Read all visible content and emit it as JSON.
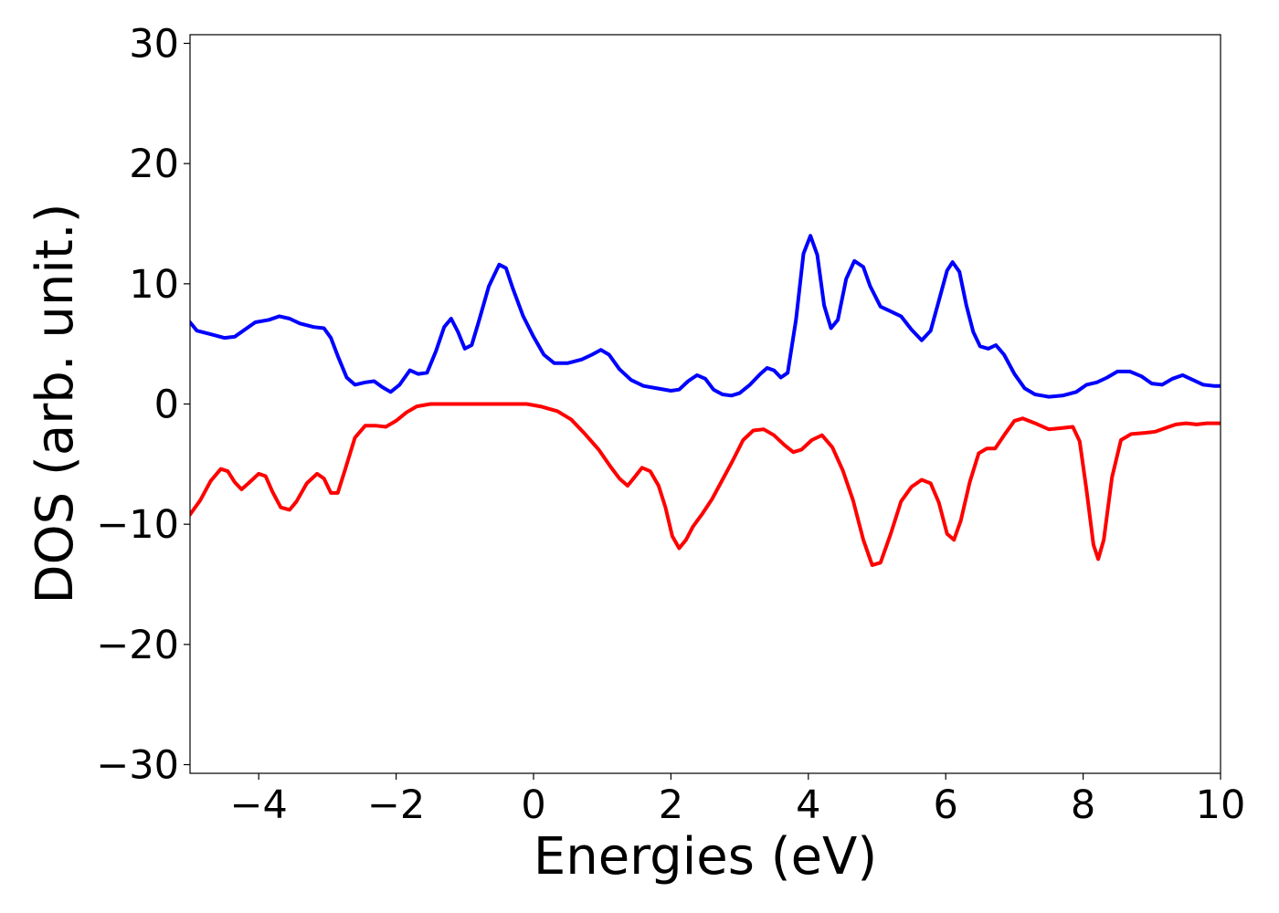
{
  "chart_data": {
    "type": "line",
    "title": "",
    "xlabel": "Energies (eV)",
    "ylabel": "DOS (arb. unit.)",
    "xlim": [
      -5,
      10
    ],
    "ylim": [
      -30,
      30
    ],
    "grid": false,
    "x_ticks": [
      -4,
      -2,
      0,
      2,
      4,
      6,
      8,
      10
    ],
    "y_ticks": [
      -30,
      -20,
      -10,
      0,
      10,
      20,
      30
    ],
    "series": [
      {
        "color": "#0000ff",
        "points": [
          [
            -5.0,
            6.8
          ],
          [
            -4.9,
            6.1
          ],
          [
            -4.7,
            5.8
          ],
          [
            -4.5,
            5.5
          ],
          [
            -4.35,
            5.6
          ],
          [
            -4.2,
            6.2
          ],
          [
            -4.05,
            6.8
          ],
          [
            -3.85,
            7.0
          ],
          [
            -3.7,
            7.3
          ],
          [
            -3.55,
            7.1
          ],
          [
            -3.4,
            6.7
          ],
          [
            -3.2,
            6.4
          ],
          [
            -3.05,
            6.3
          ],
          [
            -2.95,
            5.5
          ],
          [
            -2.85,
            4.0
          ],
          [
            -2.72,
            2.2
          ],
          [
            -2.6,
            1.6
          ],
          [
            -2.45,
            1.8
          ],
          [
            -2.32,
            1.9
          ],
          [
            -2.2,
            1.4
          ],
          [
            -2.08,
            1.0
          ],
          [
            -1.95,
            1.6
          ],
          [
            -1.8,
            2.8
          ],
          [
            -1.68,
            2.5
          ],
          [
            -1.55,
            2.6
          ],
          [
            -1.42,
            4.4
          ],
          [
            -1.3,
            6.4
          ],
          [
            -1.2,
            7.1
          ],
          [
            -1.1,
            6.0
          ],
          [
            -1.0,
            4.6
          ],
          [
            -0.9,
            4.9
          ],
          [
            -0.8,
            6.8
          ],
          [
            -0.65,
            9.8
          ],
          [
            -0.5,
            11.6
          ],
          [
            -0.4,
            11.3
          ],
          [
            -0.3,
            9.6
          ],
          [
            -0.15,
            7.3
          ],
          [
            0.0,
            5.6
          ],
          [
            0.15,
            4.1
          ],
          [
            0.3,
            3.4
          ],
          [
            0.5,
            3.4
          ],
          [
            0.7,
            3.7
          ],
          [
            0.85,
            4.1
          ],
          [
            0.98,
            4.5
          ],
          [
            1.1,
            4.1
          ],
          [
            1.25,
            2.9
          ],
          [
            1.42,
            2.0
          ],
          [
            1.6,
            1.5
          ],
          [
            1.8,
            1.3
          ],
          [
            2.0,
            1.1
          ],
          [
            2.12,
            1.2
          ],
          [
            2.25,
            1.9
          ],
          [
            2.38,
            2.4
          ],
          [
            2.5,
            2.1
          ],
          [
            2.62,
            1.2
          ],
          [
            2.75,
            0.8
          ],
          [
            2.88,
            0.7
          ],
          [
            3.0,
            0.9
          ],
          [
            3.15,
            1.6
          ],
          [
            3.3,
            2.5
          ],
          [
            3.4,
            3.0
          ],
          [
            3.5,
            2.8
          ],
          [
            3.6,
            2.2
          ],
          [
            3.7,
            2.6
          ],
          [
            3.82,
            7.0
          ],
          [
            3.93,
            12.5
          ],
          [
            4.03,
            14.0
          ],
          [
            4.13,
            12.4
          ],
          [
            4.23,
            8.2
          ],
          [
            4.33,
            6.3
          ],
          [
            4.43,
            7.0
          ],
          [
            4.55,
            10.4
          ],
          [
            4.67,
            11.9
          ],
          [
            4.8,
            11.4
          ],
          [
            4.9,
            9.8
          ],
          [
            5.05,
            8.1
          ],
          [
            5.2,
            7.7
          ],
          [
            5.35,
            7.3
          ],
          [
            5.5,
            6.2
          ],
          [
            5.65,
            5.3
          ],
          [
            5.78,
            6.1
          ],
          [
            5.9,
            8.6
          ],
          [
            6.02,
            11.1
          ],
          [
            6.1,
            11.8
          ],
          [
            6.2,
            11.0
          ],
          [
            6.3,
            8.2
          ],
          [
            6.4,
            6.0
          ],
          [
            6.5,
            4.8
          ],
          [
            6.62,
            4.6
          ],
          [
            6.73,
            4.9
          ],
          [
            6.85,
            4.1
          ],
          [
            7.0,
            2.5
          ],
          [
            7.15,
            1.3
          ],
          [
            7.3,
            0.8
          ],
          [
            7.5,
            0.6
          ],
          [
            7.7,
            0.7
          ],
          [
            7.9,
            1.0
          ],
          [
            8.05,
            1.6
          ],
          [
            8.2,
            1.8
          ],
          [
            8.35,
            2.2
          ],
          [
            8.5,
            2.7
          ],
          [
            8.68,
            2.7
          ],
          [
            8.85,
            2.3
          ],
          [
            9.0,
            1.7
          ],
          [
            9.15,
            1.6
          ],
          [
            9.3,
            2.1
          ],
          [
            9.45,
            2.4
          ],
          [
            9.6,
            2.0
          ],
          [
            9.75,
            1.6
          ],
          [
            9.9,
            1.5
          ],
          [
            10.0,
            1.5
          ]
        ]
      },
      {
        "color": "#ff0000",
        "points": [
          [
            -5.0,
            -9.2
          ],
          [
            -4.85,
            -8.0
          ],
          [
            -4.7,
            -6.4
          ],
          [
            -4.55,
            -5.4
          ],
          [
            -4.45,
            -5.6
          ],
          [
            -4.35,
            -6.5
          ],
          [
            -4.25,
            -7.1
          ],
          [
            -4.15,
            -6.6
          ],
          [
            -4.0,
            -5.8
          ],
          [
            -3.9,
            -6.0
          ],
          [
            -3.8,
            -7.3
          ],
          [
            -3.68,
            -8.6
          ],
          [
            -3.55,
            -8.8
          ],
          [
            -3.45,
            -8.1
          ],
          [
            -3.3,
            -6.6
          ],
          [
            -3.15,
            -5.8
          ],
          [
            -3.05,
            -6.2
          ],
          [
            -2.95,
            -7.4
          ],
          [
            -2.85,
            -7.4
          ],
          [
            -2.75,
            -5.6
          ],
          [
            -2.6,
            -2.8
          ],
          [
            -2.45,
            -1.8
          ],
          [
            -2.3,
            -1.8
          ],
          [
            -2.15,
            -1.9
          ],
          [
            -2.0,
            -1.4
          ],
          [
            -1.85,
            -0.7
          ],
          [
            -1.7,
            -0.2
          ],
          [
            -1.5,
            0.0
          ],
          [
            -1.0,
            0.0
          ],
          [
            -0.5,
            0.0
          ],
          [
            -0.1,
            0.0
          ],
          [
            0.1,
            -0.2
          ],
          [
            0.35,
            -0.6
          ],
          [
            0.55,
            -1.3
          ],
          [
            0.75,
            -2.5
          ],
          [
            0.95,
            -3.8
          ],
          [
            1.12,
            -5.2
          ],
          [
            1.25,
            -6.2
          ],
          [
            1.37,
            -6.8
          ],
          [
            1.47,
            -6.1
          ],
          [
            1.58,
            -5.3
          ],
          [
            1.7,
            -5.6
          ],
          [
            1.82,
            -6.8
          ],
          [
            1.92,
            -8.6
          ],
          [
            2.02,
            -11.0
          ],
          [
            2.12,
            -12.0
          ],
          [
            2.22,
            -11.3
          ],
          [
            2.32,
            -10.2
          ],
          [
            2.45,
            -9.2
          ],
          [
            2.6,
            -7.9
          ],
          [
            2.75,
            -6.3
          ],
          [
            2.9,
            -4.7
          ],
          [
            3.05,
            -3.0
          ],
          [
            3.2,
            -2.2
          ],
          [
            3.35,
            -2.1
          ],
          [
            3.5,
            -2.6
          ],
          [
            3.65,
            -3.4
          ],
          [
            3.78,
            -4.0
          ],
          [
            3.9,
            -3.8
          ],
          [
            4.05,
            -3.0
          ],
          [
            4.2,
            -2.6
          ],
          [
            4.35,
            -3.6
          ],
          [
            4.5,
            -5.5
          ],
          [
            4.65,
            -8.0
          ],
          [
            4.8,
            -11.3
          ],
          [
            4.93,
            -13.4
          ],
          [
            5.05,
            -13.2
          ],
          [
            5.2,
            -10.8
          ],
          [
            5.35,
            -8.1
          ],
          [
            5.5,
            -6.9
          ],
          [
            5.65,
            -6.3
          ],
          [
            5.78,
            -6.6
          ],
          [
            5.9,
            -8.2
          ],
          [
            6.02,
            -10.8
          ],
          [
            6.12,
            -11.3
          ],
          [
            6.22,
            -9.7
          ],
          [
            6.35,
            -6.5
          ],
          [
            6.48,
            -4.1
          ],
          [
            6.6,
            -3.7
          ],
          [
            6.72,
            -3.7
          ],
          [
            6.85,
            -2.6
          ],
          [
            7.0,
            -1.4
          ],
          [
            7.12,
            -1.2
          ],
          [
            7.3,
            -1.6
          ],
          [
            7.5,
            -2.1
          ],
          [
            7.7,
            -2.0
          ],
          [
            7.85,
            -1.9
          ],
          [
            7.95,
            -3.1
          ],
          [
            8.05,
            -7.2
          ],
          [
            8.15,
            -11.7
          ],
          [
            8.22,
            -12.9
          ],
          [
            8.3,
            -11.3
          ],
          [
            8.42,
            -6.1
          ],
          [
            8.55,
            -3.0
          ],
          [
            8.7,
            -2.5
          ],
          [
            8.9,
            -2.4
          ],
          [
            9.05,
            -2.3
          ],
          [
            9.2,
            -2.0
          ],
          [
            9.35,
            -1.7
          ],
          [
            9.5,
            -1.6
          ],
          [
            9.65,
            -1.7
          ],
          [
            9.8,
            -1.6
          ],
          [
            10.0,
            -1.6
          ]
        ]
      }
    ]
  }
}
